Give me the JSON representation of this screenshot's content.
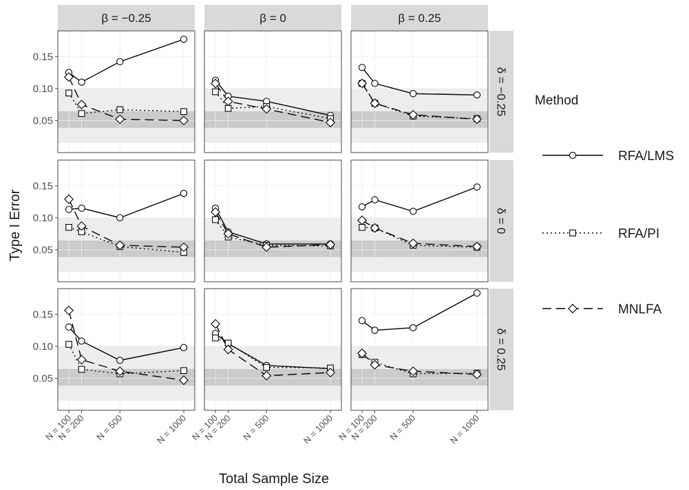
{
  "chart_data": {
    "type": "line",
    "xlabel": "Total Sample Size",
    "ylabel": "Type I Error",
    "x": [
      100,
      200,
      500,
      1000
    ],
    "x_tick_labels": [
      "N = 100",
      "N = 200",
      "N = 500",
      "N = 1000"
    ],
    "y_ticks": [
      0.05,
      0.1,
      0.15
    ],
    "y_tick_labels": [
      "0.05",
      "0.10",
      "0.15"
    ],
    "ylim": [
      0.0,
      0.19
    ],
    "bands": [
      {
        "from": 0.015,
        "to": 0.1,
        "color": "#ededed"
      },
      {
        "from": 0.0385,
        "to": 0.0645,
        "color": "#cbcbcb"
      }
    ],
    "col_labels": [
      "β = −0.25",
      "β = 0",
      "β = 0.25"
    ],
    "row_labels": [
      "δ = −0.25",
      "δ = 0",
      "δ = 0.25"
    ],
    "legend": {
      "title": "Method",
      "entries": [
        {
          "name": "RFA/LMS",
          "dash": "solid",
          "marker": "circle"
        },
        {
          "name": "RFA/PI",
          "dash": "dotted",
          "marker": "square"
        },
        {
          "name": "MNLFA",
          "dash": "dashed",
          "marker": "diamond"
        }
      ]
    },
    "panels": [
      {
        "row": 0,
        "col": 0,
        "series": [
          {
            "name": "RFA/LMS",
            "values": [
              0.125,
              0.11,
              0.142,
              0.177
            ]
          },
          {
            "name": "RFA/PI",
            "values": [
              0.093,
              0.061,
              0.067,
              0.064
            ]
          },
          {
            "name": "MNLFA",
            "values": [
              0.118,
              0.075,
              0.052,
              0.05
            ]
          }
        ]
      },
      {
        "row": 0,
        "col": 1,
        "series": [
          {
            "name": "RFA/LMS",
            "values": [
              0.113,
              0.088,
              0.08,
              0.058
            ]
          },
          {
            "name": "RFA/PI",
            "values": [
              0.095,
              0.069,
              0.072,
              0.053
            ]
          },
          {
            "name": "MNLFA",
            "values": [
              0.108,
              0.08,
              0.068,
              0.047
            ]
          }
        ]
      },
      {
        "row": 0,
        "col": 2,
        "series": [
          {
            "name": "RFA/LMS",
            "values": [
              0.133,
              0.108,
              0.092,
              0.09
            ]
          },
          {
            "name": "RFA/PI",
            "values": [
              0.108,
              0.077,
              0.057,
              0.053
            ]
          },
          {
            "name": "MNLFA",
            "values": [
              0.108,
              0.077,
              0.059,
              0.052
            ]
          }
        ]
      },
      {
        "row": 1,
        "col": 0,
        "series": [
          {
            "name": "RFA/LMS",
            "values": [
              0.113,
              0.115,
              0.1,
              0.138
            ]
          },
          {
            "name": "RFA/PI",
            "values": [
              0.085,
              0.078,
              0.055,
              0.046
            ]
          },
          {
            "name": "MNLFA",
            "values": [
              0.129,
              0.087,
              0.057,
              0.054
            ]
          }
        ]
      },
      {
        "row": 1,
        "col": 1,
        "series": [
          {
            "name": "RFA/LMS",
            "values": [
              0.115,
              0.078,
              0.059,
              0.059
            ]
          },
          {
            "name": "RFA/PI",
            "values": [
              0.097,
              0.07,
              0.057,
              0.056
            ]
          },
          {
            "name": "MNLFA",
            "values": [
              0.109,
              0.075,
              0.054,
              0.058
            ]
          }
        ]
      },
      {
        "row": 1,
        "col": 2,
        "series": [
          {
            "name": "RFA/LMS",
            "values": [
              0.117,
              0.128,
              0.11,
              0.148
            ]
          },
          {
            "name": "RFA/PI",
            "values": [
              0.085,
              0.084,
              0.057,
              0.054
            ]
          },
          {
            "name": "MNLFA",
            "values": [
              0.096,
              0.084,
              0.06,
              0.055
            ]
          }
        ]
      },
      {
        "row": 2,
        "col": 0,
        "series": [
          {
            "name": "RFA/LMS",
            "values": [
              0.13,
              0.108,
              0.078,
              0.098
            ]
          },
          {
            "name": "RFA/PI",
            "values": [
              0.103,
              0.064,
              0.057,
              0.062
            ]
          },
          {
            "name": "MNLFA",
            "values": [
              0.156,
              0.079,
              0.061,
              0.047
            ]
          }
        ]
      },
      {
        "row": 2,
        "col": 1,
        "series": [
          {
            "name": "RFA/LMS",
            "values": [
              0.12,
              0.104,
              0.07,
              0.065
            ]
          },
          {
            "name": "RFA/PI",
            "values": [
              0.113,
              0.105,
              0.067,
              0.066
            ]
          },
          {
            "name": "MNLFA",
            "values": [
              0.135,
              0.095,
              0.054,
              0.059
            ]
          }
        ]
      },
      {
        "row": 2,
        "col": 2,
        "series": [
          {
            "name": "RFA/LMS",
            "values": [
              0.14,
              0.125,
              0.129,
              0.183
            ]
          },
          {
            "name": "RFA/PI",
            "values": [
              0.087,
              0.075,
              0.057,
              0.058
            ]
          },
          {
            "name": "MNLFA",
            "values": [
              0.089,
              0.071,
              0.061,
              0.056
            ]
          }
        ]
      }
    ]
  }
}
